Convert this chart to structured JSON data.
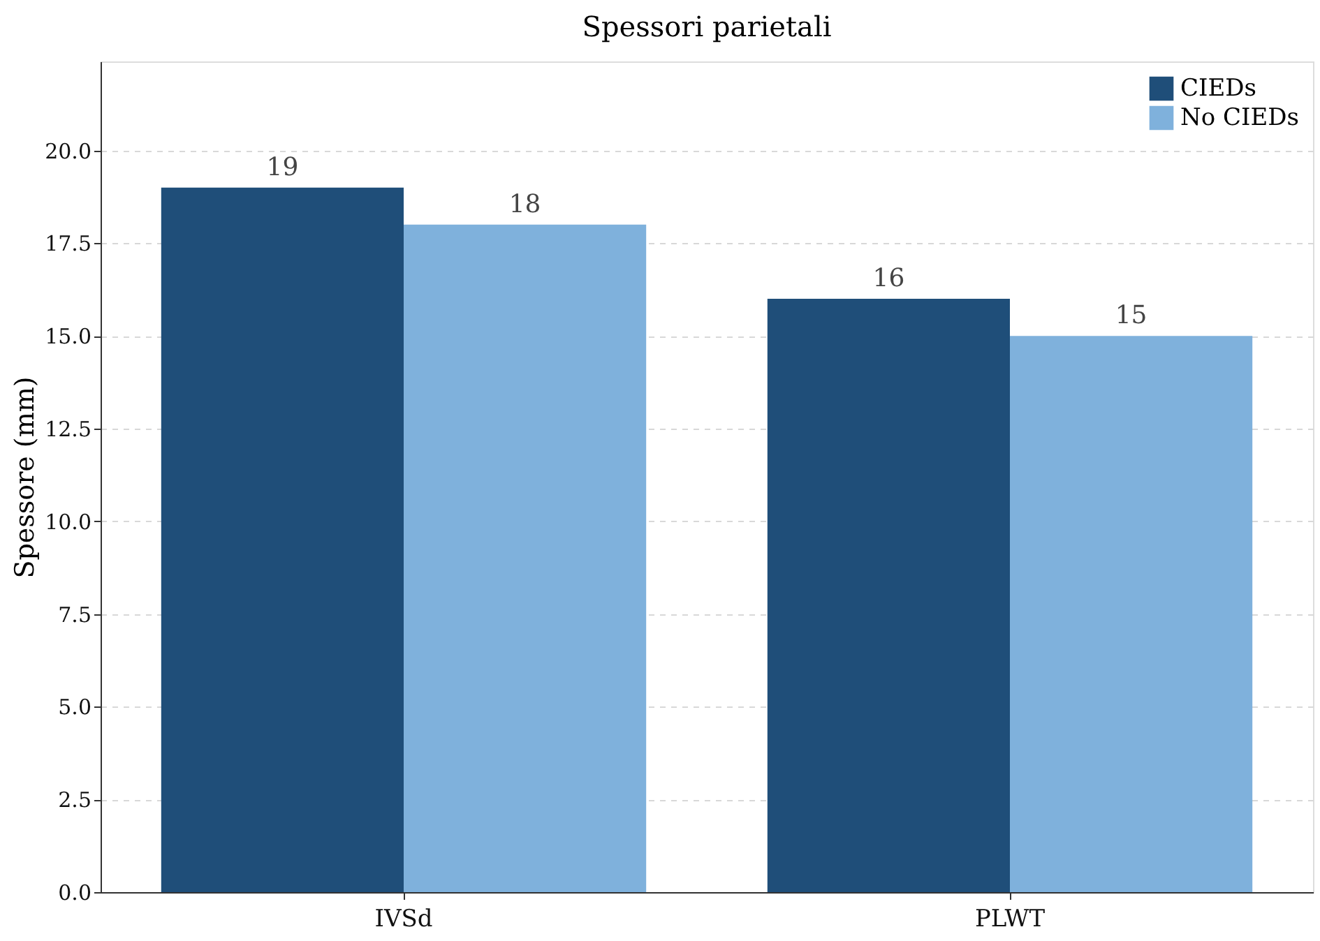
{
  "chart_data": {
    "type": "bar",
    "title": "Spessori parietali",
    "ylabel": "Spessore (mm)",
    "categories": [
      "IVSd",
      "PLWT"
    ],
    "series": [
      {
        "name": "CIEDs",
        "color": "#1f4e79",
        "values": [
          19,
          16
        ]
      },
      {
        "name": "No CIEDs",
        "color": "#7fb1dc",
        "values": [
          18,
          15
        ]
      }
    ],
    "ylim": [
      0,
      22.4
    ],
    "yticks": [
      {
        "value": 0,
        "label": "0.0"
      },
      2.5,
      {
        "value": 5,
        "label": "5.0"
      },
      7.5,
      {
        "value": 10,
        "label": "10.0"
      },
      12.5,
      {
        "value": 15,
        "label": "15.0"
      },
      17.5,
      {
        "value": 20,
        "label": "20.0"
      }
    ],
    "grid": "y",
    "legend": "top right",
    "data_labels": true
  }
}
